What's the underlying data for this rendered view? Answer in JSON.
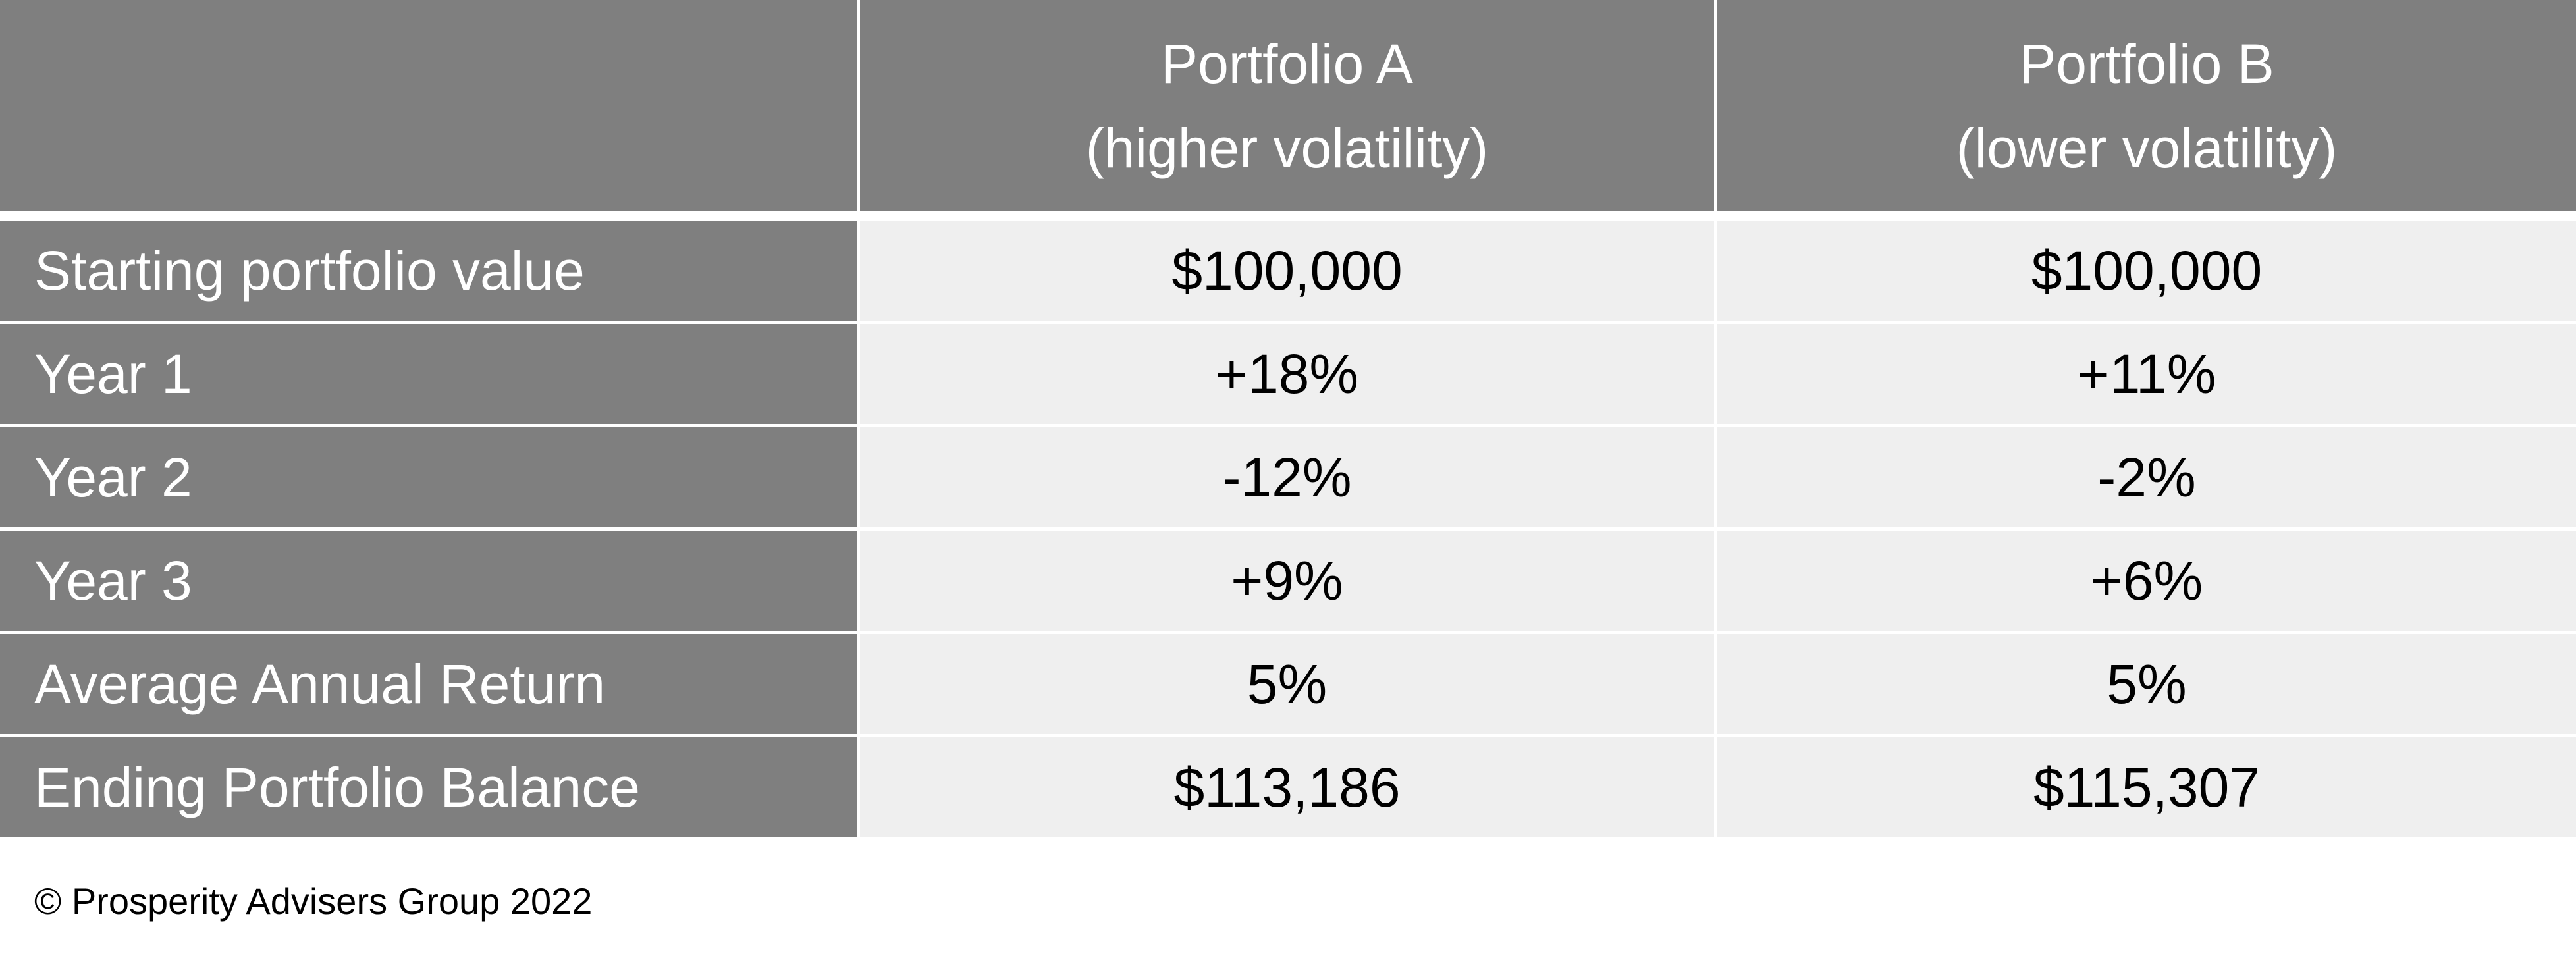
{
  "header": {
    "corner": "",
    "col_a_line1": "Portfolio A",
    "col_a_line2": "(higher volatility)",
    "col_b_line1": "Portfolio B",
    "col_b_line2": "(lower volatility)"
  },
  "rows": [
    {
      "label": "Starting portfolio value",
      "a": "$100,000",
      "b": "$100,000"
    },
    {
      "label": "Year 1",
      "a": "+18%",
      "b": "+11%"
    },
    {
      "label": "Year 2",
      "a": "-12%",
      "b": "-2%"
    },
    {
      "label": "Year 3",
      "a": "+9%",
      "b": "+6%"
    },
    {
      "label": "Average Annual Return",
      "a": "5%",
      "b": "5%"
    },
    {
      "label": "Ending Portfolio Balance",
      "a": "$113,186",
      "b": "$115,307"
    }
  ],
  "footer": "© Prosperity Advisers Group 2022",
  "colors": {
    "header_bg": "#7f7f7f",
    "cell_bg": "#efefef"
  }
}
